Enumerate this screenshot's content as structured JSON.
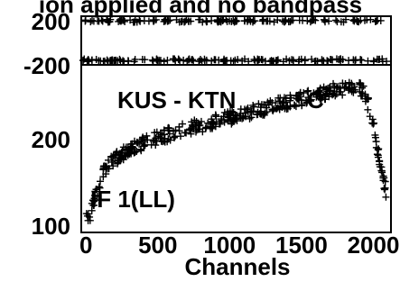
{
  "chart_data": [
    {
      "type": "scatter",
      "panel": "phase",
      "title": "ion applied and no bandpass",
      "ytick_labels": [
        "200",
        "-200"
      ],
      "ylim": [
        -200,
        200
      ],
      "marker": "+",
      "color": "#000000",
      "series": [
        {
          "band_center": 175,
          "band_spread": 12,
          "count": 150
        },
        {
          "band_center": -175,
          "band_spread": 12,
          "count": 150
        }
      ]
    },
    {
      "type": "scatter",
      "panel": "amplitude",
      "baseline": "KUS - KTN",
      "baseline_suffix": "C",
      "if_label": "IF 1(LL)",
      "xlabel": "Channels",
      "xtick_labels": [
        "0",
        "500",
        "1000",
        "1500",
        "2000"
      ],
      "xticks": [
        0,
        500,
        1000,
        1500,
        2000
      ],
      "xlim": [
        -20,
        2110
      ],
      "ytick_labels": [
        "200",
        "100"
      ],
      "yticks": [
        200,
        100
      ],
      "ylim": [
        93,
        260
      ],
      "marker": "+",
      "color": "#000000",
      "x": [
        0,
        30,
        60,
        90,
        120,
        150,
        180,
        220,
        260,
        300,
        350,
        400,
        450,
        500,
        550,
        600,
        650,
        700,
        750,
        800,
        850,
        900,
        950,
        1000,
        1050,
        1100,
        1150,
        1200,
        1250,
        1300,
        1350,
        1400,
        1450,
        1500,
        1550,
        1600,
        1650,
        1700,
        1750,
        1800,
        1850,
        1900,
        1950,
        2000,
        2050,
        2100
      ],
      "y": [
        105,
        110,
        125,
        140,
        152,
        160,
        165,
        168,
        172,
        175,
        178,
        182,
        185,
        188,
        190,
        192,
        195,
        197,
        199,
        200,
        202,
        205,
        207,
        208,
        210,
        212,
        214,
        216,
        218,
        220,
        222,
        224,
        226,
        227,
        229,
        231,
        233,
        235,
        237,
        238,
        240,
        240,
        230,
        200,
        160,
        125
      ]
    }
  ]
}
